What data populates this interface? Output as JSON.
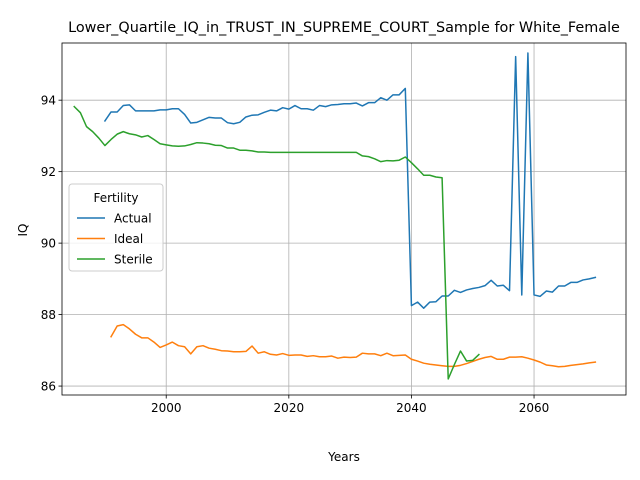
{
  "chart_data": {
    "type": "line",
    "title": "Lower_Quartile_IQ_in_TRUST_IN_SUPREME_COURT_Sample for White_Female",
    "xlabel": "Years",
    "ylabel": "IQ",
    "xlim": [
      1983,
      2075
    ],
    "ylim": [
      85.75,
      95.6
    ],
    "xticks": [
      2000,
      2020,
      2040,
      2060
    ],
    "yticks": [
      86,
      88,
      90,
      92,
      94
    ],
    "grid": true,
    "legend": {
      "title": "Fertility",
      "placement": "center-left"
    },
    "series": [
      {
        "name": "Actual",
        "color": "#1f77b4",
        "x": [
          1990,
          1991,
          1992,
          1993,
          1994,
          1995,
          1996,
          1997,
          1998,
          1999,
          2000,
          2001,
          2002,
          2003,
          2004,
          2005,
          2006,
          2007,
          2008,
          2009,
          2010,
          2011,
          2012,
          2013,
          2014,
          2015,
          2016,
          2017,
          2018,
          2019,
          2020,
          2021,
          2022,
          2023,
          2024,
          2025,
          2026,
          2027,
          2028,
          2029,
          2030,
          2031,
          2032,
          2033,
          2034,
          2035,
          2036,
          2037,
          2038,
          2039,
          2040,
          2041,
          2042,
          2043,
          2044,
          2045,
          2046,
          2047,
          2048,
          2049,
          2050,
          2051,
          2052,
          2053,
          2054,
          2055,
          2056,
          2057,
          2058,
          2059,
          2060,
          2061,
          2062,
          2063,
          2064,
          2065,
          2066,
          2067,
          2068,
          2069,
          2070
        ],
        "y": [
          93.42,
          93.67,
          93.67,
          93.85,
          93.87,
          93.7,
          93.7,
          93.7,
          93.7,
          93.73,
          93.73,
          93.76,
          93.76,
          93.6,
          93.36,
          93.38,
          93.45,
          93.52,
          93.5,
          93.5,
          93.37,
          93.34,
          93.38,
          93.53,
          93.58,
          93.59,
          93.66,
          93.72,
          93.7,
          93.79,
          93.75,
          93.85,
          93.76,
          93.76,
          93.72,
          93.85,
          93.82,
          93.87,
          93.88,
          93.9,
          93.9,
          93.92,
          93.84,
          93.93,
          93.93,
          94.07,
          94.0,
          94.15,
          94.15,
          94.33,
          88.25,
          88.35,
          88.18,
          88.35,
          88.36,
          88.52,
          88.52,
          88.68,
          88.62,
          88.69,
          88.73,
          88.76,
          88.81,
          88.96,
          88.8,
          88.82,
          88.67,
          95.22,
          88.55,
          95.32,
          88.55,
          88.51,
          88.66,
          88.63,
          88.8,
          88.8,
          88.9,
          88.9,
          88.97,
          89.0,
          89.04
        ]
      },
      {
        "name": "Ideal",
        "color": "#ff7f0e",
        "x": [
          1991,
          1992,
          1993,
          1994,
          1995,
          1996,
          1997,
          1998,
          1999,
          2000,
          2001,
          2002,
          2003,
          2004,
          2005,
          2006,
          2007,
          2008,
          2009,
          2010,
          2011,
          2012,
          2013,
          2014,
          2015,
          2016,
          2017,
          2018,
          2019,
          2020,
          2021,
          2022,
          2023,
          2024,
          2025,
          2026,
          2027,
          2028,
          2029,
          2030,
          2031,
          2032,
          2033,
          2034,
          2035,
          2036,
          2037,
          2038,
          2039,
          2040,
          2041,
          2042,
          2043,
          2044,
          2045,
          2046,
          2047,
          2048,
          2049,
          2050,
          2051,
          2052,
          2053,
          2054,
          2055,
          2056,
          2057,
          2058,
          2059,
          2060,
          2061,
          2062,
          2063,
          2064,
          2065,
          2066,
          2067,
          2068,
          2069,
          2070
        ],
        "y": [
          87.38,
          87.68,
          87.72,
          87.6,
          87.45,
          87.35,
          87.35,
          87.23,
          87.08,
          87.15,
          87.23,
          87.13,
          87.1,
          86.9,
          87.1,
          87.13,
          87.06,
          87.03,
          86.99,
          86.98,
          86.96,
          86.96,
          86.97,
          87.12,
          86.92,
          86.96,
          86.89,
          86.87,
          86.91,
          86.86,
          86.87,
          86.87,
          86.83,
          86.85,
          86.82,
          86.82,
          86.84,
          86.78,
          86.81,
          86.8,
          86.81,
          86.92,
          86.9,
          86.9,
          86.85,
          86.92,
          86.85,
          86.86,
          86.87,
          86.75,
          86.7,
          86.64,
          86.61,
          86.59,
          86.57,
          86.55,
          86.55,
          86.58,
          86.63,
          86.69,
          86.75,
          86.8,
          86.83,
          86.75,
          86.75,
          86.81,
          86.81,
          86.82,
          86.78,
          86.73,
          86.67,
          86.59,
          86.57,
          86.54,
          86.55,
          86.58,
          86.6,
          86.62,
          86.65,
          86.67
        ]
      },
      {
        "name": "Sterile",
        "color": "#2ca02c",
        "x": [
          1985,
          1986,
          1987,
          1988,
          1989,
          1990,
          1991,
          1992,
          1993,
          1994,
          1995,
          1996,
          1997,
          1998,
          1999,
          2000,
          2001,
          2002,
          2003,
          2004,
          2005,
          2006,
          2007,
          2008,
          2009,
          2010,
          2011,
          2012,
          2013,
          2014,
          2015,
          2016,
          2017,
          2018,
          2019,
          2020,
          2021,
          2022,
          2023,
          2024,
          2025,
          2026,
          2027,
          2028,
          2029,
          2030,
          2031,
          2032,
          2033,
          2034,
          2035,
          2036,
          2037,
          2038,
          2039,
          2040,
          2041,
          2042,
          2043,
          2044,
          2045,
          2046,
          2047,
          2048,
          2049,
          2050,
          2051
        ],
        "y": [
          93.82,
          93.65,
          93.26,
          93.12,
          92.94,
          92.73,
          92.9,
          93.05,
          93.12,
          93.06,
          93.03,
          92.97,
          93.01,
          92.9,
          92.78,
          92.75,
          92.72,
          92.71,
          92.72,
          92.76,
          92.81,
          92.8,
          92.78,
          92.74,
          92.73,
          92.66,
          92.66,
          92.6,
          92.6,
          92.58,
          92.55,
          92.55,
          92.54,
          92.54,
          92.54,
          92.54,
          92.54,
          92.54,
          92.54,
          92.54,
          92.54,
          92.54,
          92.54,
          92.54,
          92.54,
          92.54,
          92.54,
          92.44,
          92.42,
          92.36,
          92.28,
          92.31,
          92.3,
          92.32,
          92.41,
          92.25,
          92.08,
          91.9,
          91.9,
          91.85,
          91.83,
          86.2,
          86.6,
          86.98,
          86.7,
          86.72,
          86.88
        ]
      }
    ]
  }
}
